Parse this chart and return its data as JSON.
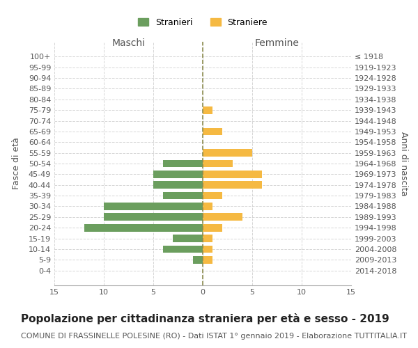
{
  "age_groups": [
    "100+",
    "95-99",
    "90-94",
    "85-89",
    "80-84",
    "75-79",
    "70-74",
    "65-69",
    "60-64",
    "55-59",
    "50-54",
    "45-49",
    "40-44",
    "35-39",
    "30-34",
    "25-29",
    "20-24",
    "15-19",
    "10-14",
    "5-9",
    "0-4"
  ],
  "birth_years": [
    "≤ 1918",
    "1919-1923",
    "1924-1928",
    "1929-1933",
    "1934-1938",
    "1939-1943",
    "1944-1948",
    "1949-1953",
    "1954-1958",
    "1959-1963",
    "1964-1968",
    "1969-1973",
    "1974-1978",
    "1979-1983",
    "1984-1988",
    "1989-1993",
    "1994-1998",
    "1999-2003",
    "2004-2008",
    "2009-2013",
    "2014-2018"
  ],
  "males": [
    0,
    0,
    0,
    0,
    0,
    0,
    0,
    0,
    0,
    0,
    4,
    5,
    5,
    4,
    10,
    10,
    12,
    3,
    4,
    1,
    0
  ],
  "females": [
    0,
    0,
    0,
    0,
    0,
    1,
    0,
    2,
    0,
    5,
    3,
    6,
    6,
    2,
    1,
    4,
    2,
    1,
    1,
    1,
    0
  ],
  "male_color": "#6b9e5e",
  "female_color": "#f5b942",
  "center_line_color": "#8b8b4e",
  "grid_color": "#cccccc",
  "background_color": "#ffffff",
  "xlim": 15,
  "title": "Popolazione per cittadinanza straniera per età e sesso - 2019",
  "subtitle": "COMUNE DI FRASSINELLE POLESINE (RO) - Dati ISTAT 1° gennaio 2019 - Elaborazione TUTTITALIA.IT",
  "ylabel_left": "Fasce di età",
  "ylabel_right": "Anni di nascita",
  "maschi_label": "Maschi",
  "femmine_label": "Femmine",
  "legend_stranieri": "Stranieri",
  "legend_straniere": "Straniere",
  "title_fontsize": 11,
  "subtitle_fontsize": 8,
  "tick_fontsize": 8,
  "label_fontsize": 9
}
